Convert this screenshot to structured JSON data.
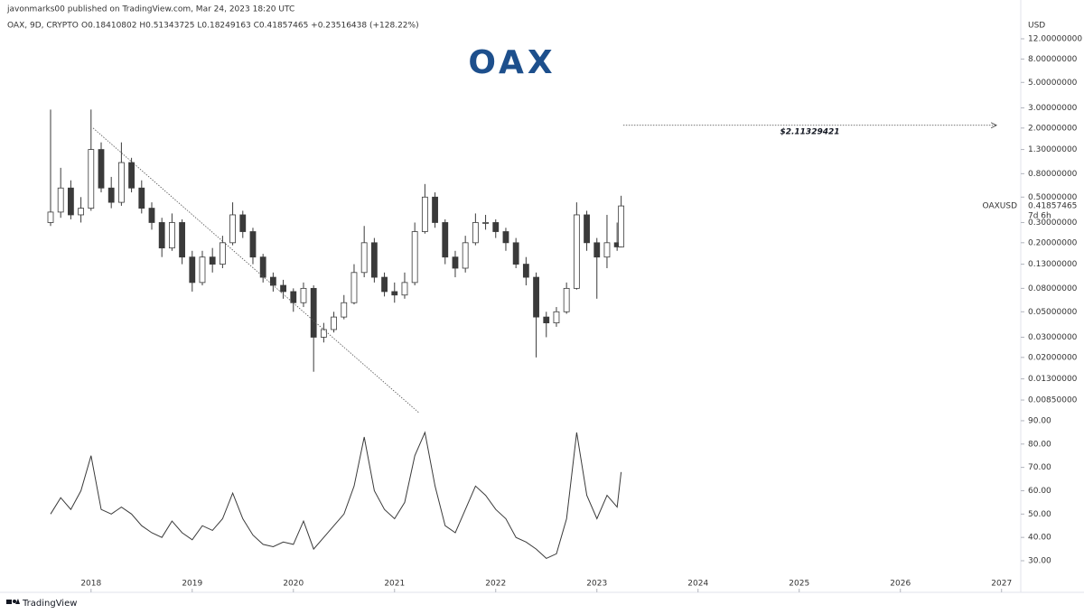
{
  "page": {
    "publisher_line": "javonmarks00 published on TradingView.com, Mar 24, 2023 18:20 UTC",
    "footer": "TradingView"
  },
  "chart_data": [
    {
      "type": "candlestick",
      "title": "OAX, 9D, CRYPTO",
      "ohlc_line": "O0.18410802 H0.51343725 L0.18249163 C0.41857465 +0.23516438 (+128.22%)",
      "logo": "OAX",
      "currency": "USD",
      "symbol_label": "OAXUSD",
      "countdown": "7d 6h",
      "log_scale": true,
      "up_color": "#ffffff",
      "down_color": "#3a3a3a",
      "edge_color": "#3a3a3a",
      "x": [
        2017.6,
        2017.7,
        2017.8,
        2017.9,
        2018.0,
        2018.1,
        2018.2,
        2018.3,
        2018.4,
        2018.5,
        2018.6,
        2018.7,
        2018.8,
        2018.9,
        2019.0,
        2019.1,
        2019.2,
        2019.3,
        2019.4,
        2019.5,
        2019.6,
        2019.7,
        2019.8,
        2019.9,
        2020.0,
        2020.1,
        2020.2,
        2020.3,
        2020.4,
        2020.5,
        2020.6,
        2020.7,
        2020.8,
        2020.9,
        2021.0,
        2021.1,
        2021.2,
        2021.3,
        2021.4,
        2021.5,
        2021.6,
        2021.7,
        2021.8,
        2021.9,
        2022.0,
        2022.1,
        2022.2,
        2022.3,
        2022.4,
        2022.5,
        2022.6,
        2022.7,
        2022.8,
        2022.9,
        2023.0,
        2023.1,
        2023.2,
        2023.24
      ],
      "open": [
        0.3,
        0.37,
        0.6,
        0.35,
        0.4,
        1.3,
        0.6,
        0.45,
        1.0,
        0.6,
        0.4,
        0.3,
        0.18,
        0.3,
        0.15,
        0.09,
        0.15,
        0.13,
        0.2,
        0.35,
        0.25,
        0.15,
        0.1,
        0.085,
        0.075,
        0.06,
        0.08,
        0.03,
        0.035,
        0.045,
        0.06,
        0.11,
        0.2,
        0.1,
        0.075,
        0.07,
        0.09,
        0.25,
        0.5,
        0.3,
        0.15,
        0.12,
        0.2,
        0.3,
        0.3,
        0.25,
        0.2,
        0.13,
        0.1,
        0.045,
        0.04,
        0.05,
        0.08,
        0.35,
        0.2,
        0.15,
        0.2,
        0.18410802
      ],
      "high": [
        2.9,
        0.9,
        0.7,
        0.5,
        2.9,
        1.5,
        0.75,
        1.5,
        1.1,
        0.7,
        0.45,
        0.33,
        0.36,
        0.32,
        0.17,
        0.17,
        0.18,
        0.23,
        0.45,
        0.38,
        0.27,
        0.16,
        0.11,
        0.095,
        0.08,
        0.09,
        0.085,
        0.04,
        0.05,
        0.07,
        0.13,
        0.28,
        0.22,
        0.11,
        0.09,
        0.11,
        0.3,
        0.65,
        0.55,
        0.32,
        0.17,
        0.23,
        0.36,
        0.35,
        0.32,
        0.27,
        0.22,
        0.15,
        0.11,
        0.05,
        0.055,
        0.09,
        0.45,
        0.38,
        0.22,
        0.35,
        0.3,
        0.51343725
      ],
      "low": [
        0.28,
        0.33,
        0.32,
        0.3,
        0.38,
        0.55,
        0.4,
        0.42,
        0.55,
        0.36,
        0.26,
        0.15,
        0.17,
        0.13,
        0.075,
        0.085,
        0.11,
        0.12,
        0.19,
        0.22,
        0.13,
        0.09,
        0.075,
        0.065,
        0.05,
        0.055,
        0.015,
        0.027,
        0.033,
        0.043,
        0.058,
        0.1,
        0.09,
        0.068,
        0.06,
        0.065,
        0.085,
        0.24,
        0.27,
        0.13,
        0.1,
        0.11,
        0.19,
        0.26,
        0.22,
        0.17,
        0.12,
        0.085,
        0.02,
        0.03,
        0.037,
        0.048,
        0.078,
        0.17,
        0.065,
        0.12,
        0.17,
        0.18249163
      ],
      "close": [
        0.37,
        0.6,
        0.35,
        0.4,
        1.3,
        0.6,
        0.45,
        1.0,
        0.6,
        0.4,
        0.3,
        0.18,
        0.3,
        0.15,
        0.09,
        0.15,
        0.13,
        0.2,
        0.35,
        0.25,
        0.15,
        0.1,
        0.085,
        0.075,
        0.06,
        0.08,
        0.03,
        0.035,
        0.045,
        0.06,
        0.11,
        0.2,
        0.1,
        0.075,
        0.07,
        0.09,
        0.25,
        0.5,
        0.3,
        0.15,
        0.12,
        0.2,
        0.3,
        0.3,
        0.25,
        0.2,
        0.13,
        0.1,
        0.045,
        0.04,
        0.05,
        0.08,
        0.35,
        0.2,
        0.15,
        0.2,
        0.184,
        0.41857465
      ],
      "xlim": [
        2017.1,
        2027.19
      ],
      "ylim": [
        0.00625,
        18.2
      ],
      "yticks": [
        {
          "value": 12,
          "label": "12.00000000"
        },
        {
          "value": 8,
          "label": "8.00000000"
        },
        {
          "value": 5,
          "label": "5.00000000"
        },
        {
          "value": 3,
          "label": "3.00000000"
        },
        {
          "value": 2,
          "label": "2.00000000"
        },
        {
          "value": 1.3,
          "label": "1.30000000"
        },
        {
          "value": 0.8,
          "label": "0.80000000"
        },
        {
          "value": 0.5,
          "label": "0.50000000"
        },
        {
          "value": 0.3,
          "label": "0.30000000"
        },
        {
          "value": 0.2,
          "label": "0.20000000"
        },
        {
          "value": 0.13,
          "label": "0.13000000"
        },
        {
          "value": 0.08,
          "label": "0.08000000"
        },
        {
          "value": 0.05,
          "label": "0.05000000"
        },
        {
          "value": 0.03,
          "label": "0.03000000"
        },
        {
          "value": 0.02,
          "label": "0.02000000"
        },
        {
          "value": 0.013,
          "label": "0.01300000"
        },
        {
          "value": 0.0085,
          "label": "0.00850000"
        }
      ],
      "trendline": {
        "x": [
          2018.02,
          2021.24
        ],
        "y": [
          2.0,
          0.0066
        ]
      },
      "annotations": [
        {
          "value": 2.11329421,
          "label": "$2.11329421",
          "x": [
            2023.26,
            2026.95
          ]
        }
      ]
    },
    {
      "type": "line",
      "color": "#3a3a3a",
      "x": [
        2017.6,
        2017.7,
        2017.8,
        2017.9,
        2018.0,
        2018.1,
        2018.2,
        2018.3,
        2018.4,
        2018.5,
        2018.6,
        2018.7,
        2018.8,
        2018.9,
        2019.0,
        2019.1,
        2019.2,
        2019.3,
        2019.4,
        2019.5,
        2019.6,
        2019.7,
        2019.8,
        2019.9,
        2020.0,
        2020.1,
        2020.2,
        2020.3,
        2020.4,
        2020.5,
        2020.6,
        2020.7,
        2020.8,
        2020.9,
        2021.0,
        2021.1,
        2021.2,
        2021.3,
        2021.4,
        2021.5,
        2021.6,
        2021.7,
        2021.8,
        2021.9,
        2022.0,
        2022.1,
        2022.2,
        2022.3,
        2022.4,
        2022.5,
        2022.6,
        2022.7,
        2022.8,
        2022.9,
        2023.0,
        2023.1,
        2023.2,
        2023.24
      ],
      "values": [
        50,
        57,
        52,
        60,
        75,
        52,
        50,
        53,
        50,
        45,
        42,
        40,
        47,
        42,
        39,
        45,
        43,
        48,
        59,
        48,
        41,
        37,
        36,
        38,
        37,
        47,
        35,
        40,
        45,
        50,
        62,
        83,
        60,
        52,
        48,
        55,
        75,
        85,
        62,
        45,
        42,
        52,
        62,
        58,
        52,
        48,
        40,
        38,
        35,
        31,
        33,
        48,
        85,
        58,
        48,
        58,
        53,
        68
      ],
      "xlim": [
        2017.1,
        2027.19
      ],
      "xticks": [
        2018,
        2019,
        2020,
        2021,
        2022,
        2023,
        2024,
        2025,
        2026,
        2027
      ],
      "ylim": [
        24.2,
        92.3
      ],
      "yticks": [
        {
          "value": 90,
          "label": "90.00"
        },
        {
          "value": 80,
          "label": "80.00"
        },
        {
          "value": 70,
          "label": "70.00"
        },
        {
          "value": 60,
          "label": "60.00"
        },
        {
          "value": 50,
          "label": "50.00"
        },
        {
          "value": 40,
          "label": "40.00"
        },
        {
          "value": 30,
          "label": "30.00"
        }
      ]
    }
  ]
}
